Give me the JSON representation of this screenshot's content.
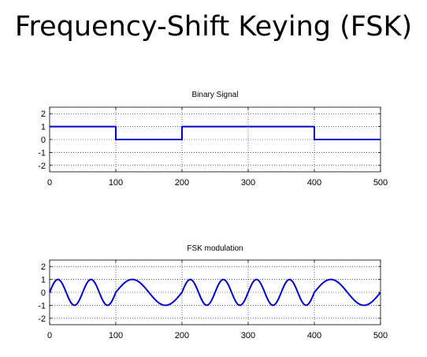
{
  "slide": {
    "title": "Frequency-Shift Keying (FSK)"
  },
  "chart_data": [
    {
      "type": "line",
      "title": "Binary Signal",
      "xlabel": "",
      "ylabel": "",
      "xlim": [
        0,
        500
      ],
      "ylim": [
        -2.5,
        2.5
      ],
      "xticks": [
        0,
        100,
        200,
        300,
        400,
        500
      ],
      "yticks": [
        2,
        1,
        0,
        -1,
        -2
      ],
      "grid": true,
      "series": [
        {
          "color": "#0000cc",
          "x": [
            0,
            100,
            100,
            200,
            200,
            400,
            400,
            500
          ],
          "y": [
            1,
            1,
            0,
            0,
            1,
            1,
            0,
            0
          ]
        }
      ]
    },
    {
      "type": "line",
      "title": "FSK modulation",
      "xlabel": "",
      "ylabel": "",
      "xlim": [
        0,
        500
      ],
      "ylim": [
        -2.5,
        2.5
      ],
      "xticks": [
        0,
        100,
        200,
        300,
        400,
        500
      ],
      "yticks": [
        2,
        1,
        0,
        -1,
        -2
      ],
      "grid": true,
      "series": [
        {
          "color": "#0000cc",
          "segments": [
            {
              "x_start": 0,
              "x_end": 100,
              "cycles": 2,
              "amplitude": 1
            },
            {
              "x_start": 100,
              "x_end": 200,
              "cycles": 1,
              "amplitude": 1
            },
            {
              "x_start": 200,
              "x_end": 400,
              "cycles": 4,
              "amplitude": 1
            },
            {
              "x_start": 400,
              "x_end": 500,
              "cycles": 1,
              "amplitude": 1
            }
          ]
        }
      ]
    }
  ]
}
